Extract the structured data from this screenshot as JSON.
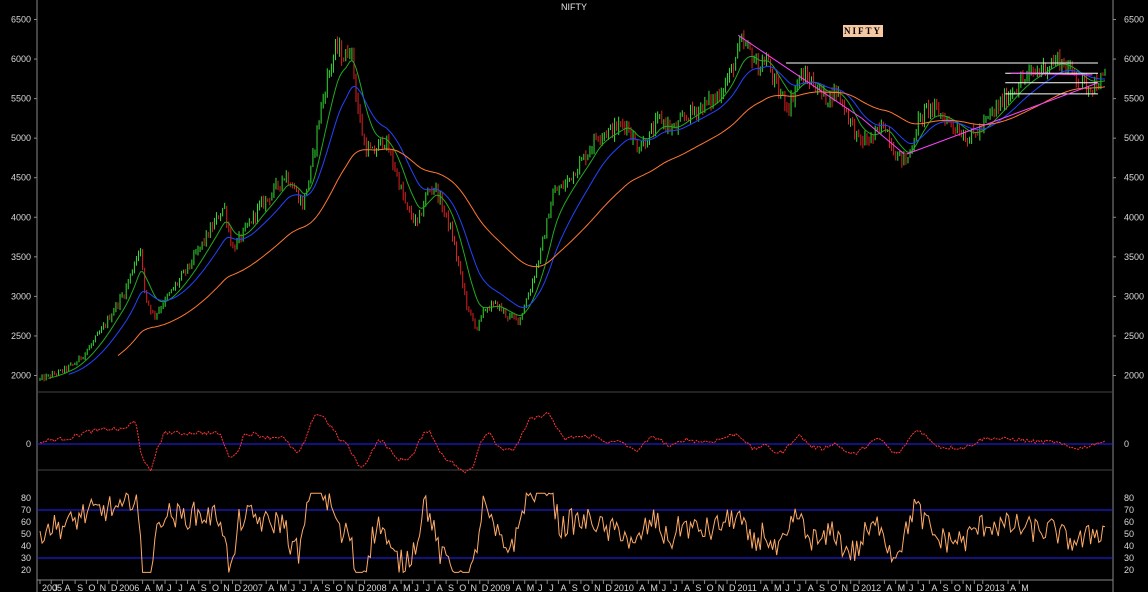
{
  "chart_data": [
    {
      "type": "candlestick",
      "title": "NIFTY",
      "annotation": "NIFTY",
      "y_ticks": [
        2000,
        2500,
        3000,
        3500,
        4000,
        4500,
        5000,
        5500,
        6000,
        6500
      ],
      "ylim": [
        1880,
        6620
      ],
      "x_range": [
        2005.75,
        2013.33
      ],
      "grid": false,
      "candle_colors": {
        "up": "#33dd33",
        "down": "#dd2222"
      },
      "close_path": [
        [
          2005.75,
          1950
        ],
        [
          2005.9,
          2050
        ],
        [
          2006.0,
          2150
        ],
        [
          2006.1,
          2350
        ],
        [
          2006.2,
          2600
        ],
        [
          2006.28,
          2850
        ],
        [
          2006.35,
          3050
        ],
        [
          2006.4,
          3300
        ],
        [
          2006.46,
          3650
        ],
        [
          2006.5,
          3000
        ],
        [
          2006.56,
          2750
        ],
        [
          2006.62,
          2900
        ],
        [
          2006.7,
          3100
        ],
        [
          2006.8,
          3350
        ],
        [
          2006.9,
          3650
        ],
        [
          2007.0,
          3950
        ],
        [
          2007.06,
          4150
        ],
        [
          2007.12,
          3600
        ],
        [
          2007.2,
          3800
        ],
        [
          2007.3,
          4100
        ],
        [
          2007.4,
          4300
        ],
        [
          2007.5,
          4550
        ],
        [
          2007.58,
          4300
        ],
        [
          2007.62,
          4150
        ],
        [
          2007.68,
          4600
        ],
        [
          2007.74,
          5300
        ],
        [
          2007.8,
          5800
        ],
        [
          2007.86,
          6150
        ],
        [
          2007.92,
          6000
        ],
        [
          2007.96,
          6200
        ],
        [
          2008.01,
          5400
        ],
        [
          2008.06,
          4900
        ],
        [
          2008.12,
          4800
        ],
        [
          2008.2,
          5000
        ],
        [
          2008.28,
          4600
        ],
        [
          2008.36,
          4100
        ],
        [
          2008.44,
          3900
        ],
        [
          2008.5,
          4300
        ],
        [
          2008.56,
          4400
        ],
        [
          2008.62,
          4100
        ],
        [
          2008.68,
          3800
        ],
        [
          2008.74,
          3300
        ],
        [
          2008.8,
          2800
        ],
        [
          2008.86,
          2600
        ],
        [
          2008.92,
          2850
        ],
        [
          2009.0,
          2900
        ],
        [
          2009.08,
          2750
        ],
        [
          2009.16,
          2700
        ],
        [
          2009.24,
          3100
        ],
        [
          2009.32,
          3600
        ],
        [
          2009.4,
          4300
        ],
        [
          2009.48,
          4400
        ],
        [
          2009.56,
          4600
        ],
        [
          2009.64,
          4800
        ],
        [
          2009.72,
          5050
        ],
        [
          2009.82,
          5100
        ],
        [
          2009.92,
          5200
        ],
        [
          2010.0,
          4900
        ],
        [
          2010.08,
          5000
        ],
        [
          2010.16,
          5250
        ],
        [
          2010.26,
          5100
        ],
        [
          2010.36,
          5300
        ],
        [
          2010.46,
          5400
        ],
        [
          2010.56,
          5500
        ],
        [
          2010.66,
          5800
        ],
        [
          2010.74,
          6200
        ],
        [
          2010.8,
          6100
        ],
        [
          2010.86,
          5900
        ],
        [
          2010.92,
          6000
        ],
        [
          2011.0,
          5600
        ],
        [
          2011.08,
          5400
        ],
        [
          2011.16,
          5800
        ],
        [
          2011.26,
          5700
        ],
        [
          2011.34,
          5500
        ],
        [
          2011.42,
          5600
        ],
        [
          2011.5,
          5300
        ],
        [
          2011.58,
          4950
        ],
        [
          2011.68,
          5000
        ],
        [
          2011.76,
          5200
        ],
        [
          2011.84,
          4800
        ],
        [
          2011.92,
          4700
        ],
        [
          2012.0,
          5200
        ],
        [
          2012.08,
          5400
        ],
        [
          2012.16,
          5300
        ],
        [
          2012.26,
          5150
        ],
        [
          2012.36,
          5000
        ],
        [
          2012.44,
          5100
        ],
        [
          2012.52,
          5300
        ],
        [
          2012.62,
          5500
        ],
        [
          2012.72,
          5700
        ],
        [
          2012.8,
          5800
        ],
        [
          2012.9,
          5900
        ],
        [
          2013.0,
          6000
        ],
        [
          2013.06,
          5900
        ],
        [
          2013.12,
          5800
        ],
        [
          2013.2,
          5650
        ],
        [
          2013.27,
          5700
        ],
        [
          2013.33,
          5750
        ]
      ],
      "overlays": [
        {
          "color": "#22aa22",
          "lag": 0.04
        },
        {
          "color": "#2244ff",
          "lag": 0.09
        },
        {
          "color": "#ff7733",
          "lag": 0.28
        }
      ],
      "trendlines": [
        {
          "color": "#ff44ff",
          "points": [
            [
              2010.72,
              6300
            ],
            [
              2011.6,
              5250
            ]
          ]
        },
        {
          "color": "#ff44ff",
          "points": [
            [
              2011.6,
              5250
            ],
            [
              2011.9,
              4800
            ]
          ]
        },
        {
          "color": "#ffffff",
          "points": [
            [
              2011.06,
              5950
            ],
            [
              2013.28,
              5950
            ]
          ]
        },
        {
          "color": "#ffffff",
          "points": [
            [
              2012.62,
              5820
            ],
            [
              2013.28,
              5820
            ]
          ]
        },
        {
          "color": "#ffffff",
          "points": [
            [
              2012.62,
              5700
            ],
            [
              2013.28,
              5700
            ]
          ]
        },
        {
          "color": "#ffffff",
          "points": [
            [
              2012.62,
              5560
            ],
            [
              2013.28,
              5560
            ]
          ]
        },
        {
          "color": "#ff44ff",
          "points": [
            [
              2012.66,
              5820
            ],
            [
              2013.24,
              5800
            ]
          ]
        },
        {
          "color": "#ff44ff",
          "points": [
            [
              2011.92,
              4800
            ],
            [
              2013.28,
              5700
            ]
          ]
        }
      ]
    },
    {
      "type": "line",
      "y_ticks": [
        0
      ],
      "ylim": [
        -45,
        45
      ],
      "zero_line_color": "#2222ff",
      "series_color": "#ff3333"
    },
    {
      "type": "line",
      "y_ticks": [
        20,
        30,
        40,
        50,
        60,
        70,
        80
      ],
      "ylim": [
        15,
        85
      ],
      "bands": [
        30,
        70
      ],
      "band_color": "#2222ff",
      "series_color": "#ffaa66"
    },
    {
      "type": "time_axis",
      "month_labels": [
        {
          "t": 2005.75,
          "label": "2005"
        },
        {
          "t": 2005.83,
          "label": "J"
        },
        {
          "t": 2005.91,
          "label": "A"
        },
        {
          "t": 2006.0,
          "label": "S"
        },
        {
          "t": 2006.08,
          "label": "O"
        },
        {
          "t": 2006.16,
          "label": "N"
        },
        {
          "t": 2006.24,
          "label": "D"
        },
        {
          "t": 2006.3,
          "label": "2006"
        },
        {
          "t": 2006.48,
          "label": "A"
        },
        {
          "t": 2006.56,
          "label": "M"
        },
        {
          "t": 2006.64,
          "label": "J"
        },
        {
          "t": 2006.72,
          "label": "J"
        },
        {
          "t": 2006.8,
          "label": "A"
        },
        {
          "t": 2006.88,
          "label": "S"
        },
        {
          "t": 2006.96,
          "label": "O"
        },
        {
          "t": 2007.04,
          "label": "N"
        },
        {
          "t": 2007.12,
          "label": "D"
        },
        {
          "t": 2007.18,
          "label": "2007"
        },
        {
          "t": 2007.36,
          "label": "A"
        },
        {
          "t": 2007.44,
          "label": "M"
        },
        {
          "t": 2007.52,
          "label": "J"
        },
        {
          "t": 2007.6,
          "label": "J"
        },
        {
          "t": 2007.68,
          "label": "A"
        },
        {
          "t": 2007.76,
          "label": "S"
        },
        {
          "t": 2007.84,
          "label": "O"
        },
        {
          "t": 2007.92,
          "label": "N"
        },
        {
          "t": 2008.0,
          "label": "D"
        },
        {
          "t": 2008.06,
          "label": "2008"
        },
        {
          "t": 2008.24,
          "label": "A"
        },
        {
          "t": 2008.32,
          "label": "M"
        },
        {
          "t": 2008.4,
          "label": "J"
        },
        {
          "t": 2008.48,
          "label": "J"
        },
        {
          "t": 2008.56,
          "label": "A"
        },
        {
          "t": 2008.64,
          "label": "S"
        },
        {
          "t": 2008.72,
          "label": "O"
        },
        {
          "t": 2008.8,
          "label": "N"
        },
        {
          "t": 2008.88,
          "label": "D"
        },
        {
          "t": 2008.94,
          "label": "2009"
        },
        {
          "t": 2009.12,
          "label": "A"
        },
        {
          "t": 2009.2,
          "label": "M"
        },
        {
          "t": 2009.28,
          "label": "J"
        },
        {
          "t": 2009.36,
          "label": "J"
        },
        {
          "t": 2009.44,
          "label": "A"
        },
        {
          "t": 2009.52,
          "label": "S"
        },
        {
          "t": 2009.6,
          "label": "O"
        },
        {
          "t": 2009.68,
          "label": "N"
        },
        {
          "t": 2009.76,
          "label": "D"
        },
        {
          "t": 2009.82,
          "label": "2010"
        },
        {
          "t": 2010.0,
          "label": "A"
        },
        {
          "t": 2010.08,
          "label": "M"
        },
        {
          "t": 2010.16,
          "label": "J"
        },
        {
          "t": 2010.24,
          "label": "J"
        },
        {
          "t": 2010.32,
          "label": "A"
        },
        {
          "t": 2010.4,
          "label": "S"
        },
        {
          "t": 2010.48,
          "label": "O"
        },
        {
          "t": 2010.56,
          "label": "N"
        },
        {
          "t": 2010.64,
          "label": "D"
        },
        {
          "t": 2010.7,
          "label": "2011"
        },
        {
          "t": 2010.88,
          "label": "A"
        },
        {
          "t": 2010.96,
          "label": "M"
        },
        {
          "t": 2011.04,
          "label": "J"
        },
        {
          "t": 2011.12,
          "label": "J"
        },
        {
          "t": 2011.2,
          "label": "A"
        },
        {
          "t": 2011.28,
          "label": "S"
        },
        {
          "t": 2011.36,
          "label": "O"
        },
        {
          "t": 2011.44,
          "label": "N"
        },
        {
          "t": 2011.52,
          "label": "D"
        },
        {
          "t": 2011.58,
          "label": "2012"
        },
        {
          "t": 2011.76,
          "label": "A"
        },
        {
          "t": 2011.84,
          "label": "M"
        },
        {
          "t": 2011.92,
          "label": "J"
        },
        {
          "t": 2012.0,
          "label": "J"
        },
        {
          "t": 2012.08,
          "label": "A"
        },
        {
          "t": 2012.16,
          "label": "S"
        },
        {
          "t": 2012.24,
          "label": "O"
        },
        {
          "t": 2012.32,
          "label": "N"
        },
        {
          "t": 2012.4,
          "label": "D"
        },
        {
          "t": 2012.46,
          "label": "2013"
        },
        {
          "t": 2012.64,
          "label": "A"
        },
        {
          "t": 2012.72,
          "label": "M"
        }
      ]
    }
  ]
}
